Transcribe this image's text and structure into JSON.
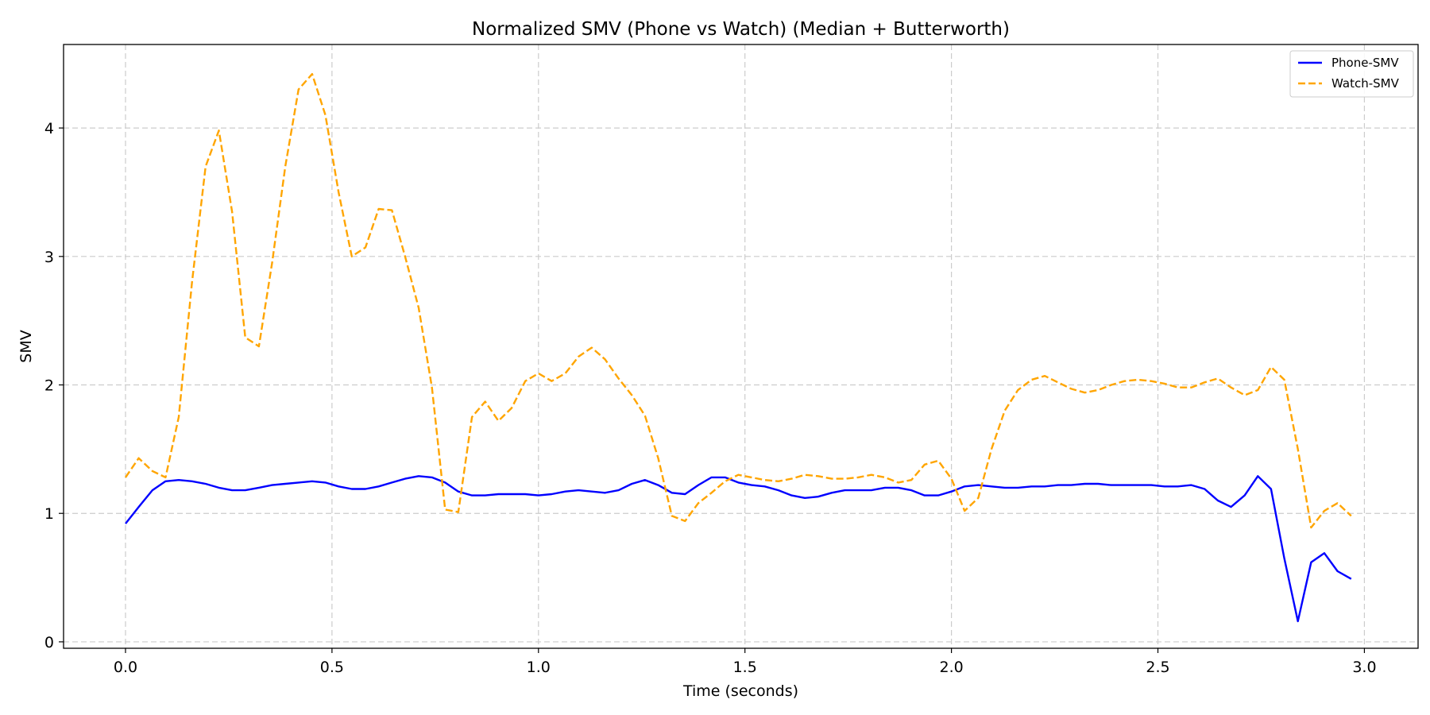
{
  "chart_data": {
    "type": "line",
    "title": "Normalized SMV (Phone vs Watch) (Median + Butterworth)",
    "xlabel": "Time (seconds)",
    "ylabel": "SMV",
    "xlim": [
      -0.15,
      3.13
    ],
    "ylim": [
      -0.05,
      4.65
    ],
    "xticks": [
      0.0,
      0.5,
      1.0,
      1.5,
      2.0,
      2.5,
      3.0
    ],
    "xtick_labels": [
      "0.0",
      "0.5",
      "1.0",
      "1.5",
      "2.0",
      "2.5",
      "3.0"
    ],
    "yticks": [
      0,
      1,
      2,
      3,
      4
    ],
    "ytick_labels": [
      "0",
      "1",
      "2",
      "3",
      "4"
    ],
    "grid": true,
    "legend_position": "top-right",
    "x": [
      0.0,
      0.032,
      0.065,
      0.097,
      0.129,
      0.161,
      0.194,
      0.226,
      0.258,
      0.29,
      0.323,
      0.355,
      0.387,
      0.419,
      0.452,
      0.484,
      0.516,
      0.548,
      0.581,
      0.613,
      0.645,
      0.677,
      0.71,
      0.742,
      0.774,
      0.806,
      0.839,
      0.871,
      0.903,
      0.935,
      0.968,
      1.0,
      1.032,
      1.065,
      1.097,
      1.129,
      1.161,
      1.194,
      1.226,
      1.258,
      1.29,
      1.323,
      1.355,
      1.387,
      1.419,
      1.452,
      1.484,
      1.516,
      1.548,
      1.581,
      1.613,
      1.645,
      1.677,
      1.71,
      1.742,
      1.774,
      1.806,
      1.839,
      1.871,
      1.903,
      1.935,
      1.968,
      2.0,
      2.032,
      2.065,
      2.097,
      2.129,
      2.161,
      2.194,
      2.226,
      2.258,
      2.29,
      2.323,
      2.355,
      2.387,
      2.419,
      2.452,
      2.484,
      2.516,
      2.548,
      2.581,
      2.613,
      2.645,
      2.677,
      2.71,
      2.742,
      2.774,
      2.806,
      2.839,
      2.871,
      2.903,
      2.935,
      2.968
    ],
    "series": [
      {
        "name": "Phone-SMV",
        "color": "#0000ff",
        "style": "solid",
        "values": [
          0.92,
          1.05,
          1.18,
          1.25,
          1.26,
          1.25,
          1.23,
          1.2,
          1.18,
          1.18,
          1.2,
          1.22,
          1.23,
          1.24,
          1.25,
          1.24,
          1.21,
          1.19,
          1.19,
          1.21,
          1.24,
          1.27,
          1.29,
          1.28,
          1.24,
          1.17,
          1.14,
          1.14,
          1.15,
          1.15,
          1.15,
          1.14,
          1.15,
          1.17,
          1.18,
          1.17,
          1.16,
          1.18,
          1.23,
          1.26,
          1.22,
          1.16,
          1.15,
          1.22,
          1.28,
          1.28,
          1.24,
          1.22,
          1.21,
          1.18,
          1.14,
          1.12,
          1.13,
          1.16,
          1.18,
          1.18,
          1.18,
          1.2,
          1.2,
          1.18,
          1.14,
          1.14,
          1.17,
          1.21,
          1.22,
          1.21,
          1.2,
          1.2,
          1.21,
          1.21,
          1.22,
          1.22,
          1.23,
          1.23,
          1.22,
          1.22,
          1.22,
          1.22,
          1.21,
          1.21,
          1.22,
          1.19,
          1.1,
          1.05,
          1.14,
          1.29,
          1.19,
          0.65,
          0.16,
          0.62,
          0.69,
          0.55,
          0.49
        ]
      },
      {
        "name": "Watch-SMV",
        "color": "#ffa500",
        "style": "dashed",
        "values": [
          1.28,
          1.43,
          1.33,
          1.28,
          1.75,
          2.8,
          3.7,
          3.98,
          3.35,
          2.37,
          2.3,
          2.95,
          3.7,
          4.3,
          4.42,
          4.1,
          3.5,
          3.0,
          3.07,
          3.37,
          3.36,
          3.0,
          2.6,
          1.98,
          1.03,
          1.01,
          1.75,
          1.87,
          1.72,
          1.82,
          2.03,
          2.09,
          2.03,
          2.09,
          2.22,
          2.29,
          2.2,
          2.05,
          1.92,
          1.76,
          1.43,
          0.98,
          0.94,
          1.08,
          1.16,
          1.25,
          1.3,
          1.28,
          1.26,
          1.25,
          1.27,
          1.3,
          1.29,
          1.27,
          1.27,
          1.28,
          1.3,
          1.28,
          1.24,
          1.26,
          1.38,
          1.41,
          1.27,
          1.02,
          1.12,
          1.5,
          1.8,
          1.96,
          2.04,
          2.07,
          2.02,
          1.97,
          1.94,
          1.96,
          2.0,
          2.03,
          2.04,
          2.03,
          2.01,
          1.98,
          1.98,
          2.02,
          2.05,
          1.98,
          1.92,
          1.96,
          2.14,
          2.04,
          1.5,
          0.89,
          1.02,
          1.08,
          0.98
        ]
      }
    ]
  }
}
